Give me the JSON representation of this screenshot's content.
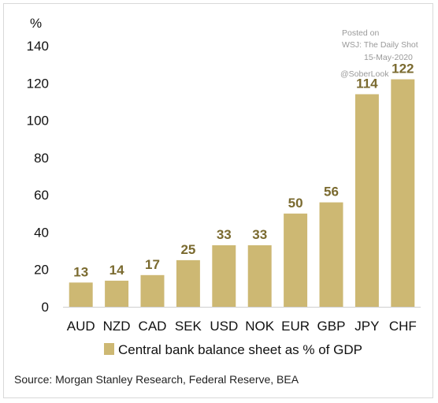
{
  "chart_data": {
    "type": "bar",
    "unit_label": "%",
    "categories": [
      "AUD",
      "NZD",
      "CAD",
      "SEK",
      "USD",
      "NOK",
      "EUR",
      "GBP",
      "JPY",
      "CHF"
    ],
    "values": [
      13,
      14,
      17,
      25,
      33,
      33,
      50,
      56,
      114,
      122
    ],
    "data_labels": [
      "13",
      "14",
      "17",
      "25",
      "33",
      "33",
      "50",
      "56",
      "114",
      "122"
    ],
    "ylim": [
      0,
      140
    ],
    "yticks": [
      0,
      20,
      40,
      60,
      80,
      100,
      120,
      140
    ],
    "bar_color": "#cdb873",
    "label_color": "#7a6a2f",
    "grid": false,
    "legend": {
      "position": "bottom",
      "entries": [
        {
          "label": "Central bank balance sheet as % of GDP",
          "color": "#cdb873"
        }
      ]
    },
    "source": "Source: Morgan Stanley Research, Federal Reserve, BEA"
  },
  "watermark": {
    "line1": "Posted on",
    "line2": "WSJ: The Daily Shot",
    "line3": "15-May-2020",
    "line4": "@SoberLook"
  }
}
